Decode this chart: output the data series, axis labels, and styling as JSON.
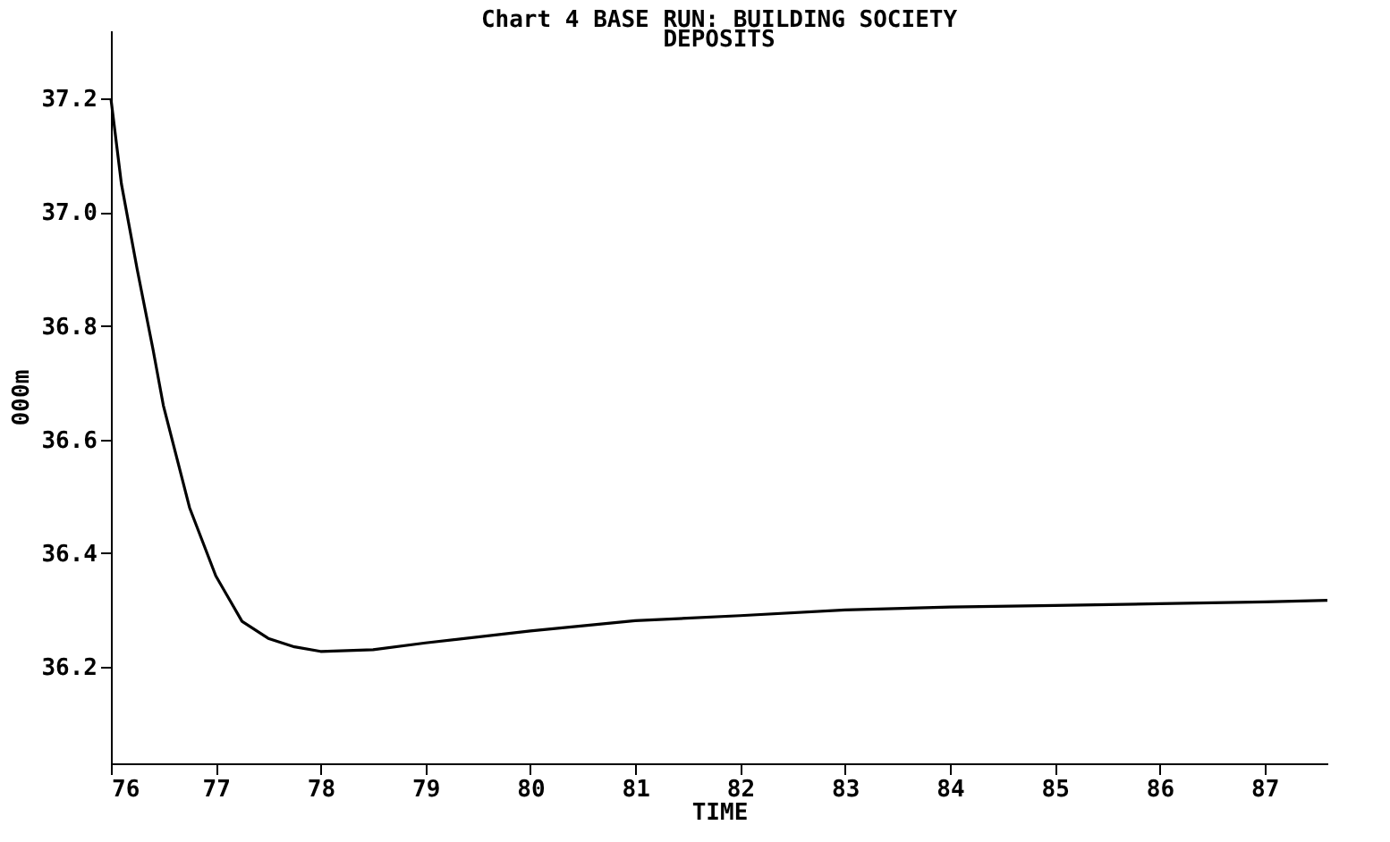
{
  "chart_data": {
    "type": "line",
    "title": "Chart 4  BASE RUN: BUILDING SOCIETY\nDEPOSITS",
    "xlabel": "TIME",
    "ylabel": "000m",
    "x": [
      76,
      76.1,
      76.25,
      76.4,
      76.5,
      76.75,
      77,
      77.25,
      77.5,
      77.75,
      78,
      78.5,
      79,
      80,
      81,
      82,
      83,
      84,
      85,
      86,
      87,
      87.6
    ],
    "series": [
      {
        "color": "#000000",
        "values": [
          37.2,
          37.05,
          36.9,
          36.76,
          36.66,
          36.48,
          36.36,
          36.28,
          36.25,
          36.235,
          36.227,
          36.23,
          36.242,
          36.263,
          36.281,
          36.29,
          36.3,
          36.305,
          36.308,
          36.311,
          36.314,
          36.317
        ]
      }
    ],
    "xlim": [
      76,
      87.6
    ],
    "xticks": [
      76,
      77,
      78,
      79,
      80,
      81,
      82,
      83,
      84,
      85,
      86,
      87
    ],
    "ylim": [
      36.03,
      37.32
    ],
    "yticks": [
      {
        "value": 36.2,
        "label": "36.2"
      },
      {
        "value": 36.4,
        "label": "36.4"
      },
      {
        "value": 36.6,
        "label": "36.6"
      },
      {
        "value": 36.8,
        "label": "36.8"
      },
      {
        "value": 37.0,
        "label": "37.0"
      },
      {
        "value": 37.2,
        "label": "37.2"
      }
    ],
    "grid": false,
    "marker": "none",
    "line_style": "solid"
  }
}
